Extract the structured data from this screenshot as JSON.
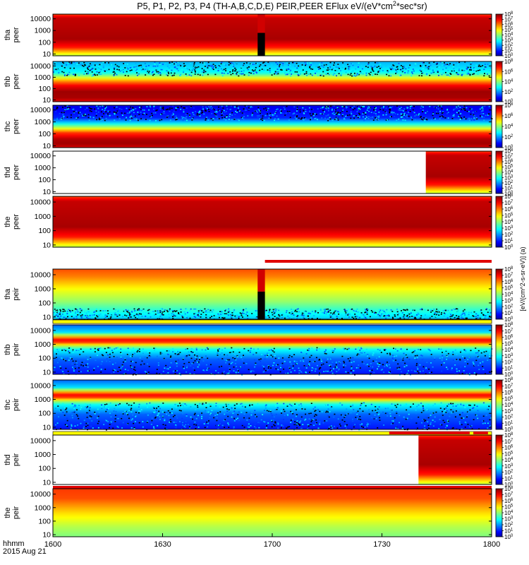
{
  "chart_data": {
    "type": "heatmap",
    "title": "P5, P1, P2, P3, P4 (TH-A,B,C,D,E) PEIR,PEER EFlux eV/(eV*cm^2*sec*sr)",
    "title_parts": {
      "main": "P5, P1, P2, P3, P4 (TH-A,B,C,D,E) PEIR,PEER EFlux eV/(eV*cm",
      "sup": "2",
      "tail": "*sec*sr)"
    },
    "x_axis": {
      "label_line1": "hhmm",
      "label_line2": "2015 Aug 21",
      "ticks": [
        "1600",
        "1630",
        "1700",
        "1730",
        "1800"
      ],
      "range_minutes": [
        0,
        120
      ],
      "tick_minutes": [
        0,
        30,
        60,
        90,
        120
      ]
    },
    "y_axis": {
      "scale": "log",
      "ticks": [
        "10",
        "100",
        "1000",
        "10000"
      ],
      "units": "eV"
    },
    "colorbar_label": "[eV/(cm^2-s-sr-eV)] (a)",
    "panels": [
      {
        "probe": "tha",
        "species": "peer",
        "label_top": "tha",
        "label_bottom": "peer",
        "cbar_max_exp": 8,
        "cbar_min_exp": 0,
        "cbar_ticks": [
          8,
          7,
          6,
          5,
          4,
          3,
          2,
          1,
          0
        ],
        "gap_minutes": [
          56,
          58
        ],
        "data_start_minutes": 0,
        "pattern": "hot_wide",
        "status_bar": "none"
      },
      {
        "probe": "thb",
        "species": "peer",
        "label_top": "thb",
        "label_bottom": "peer",
        "cbar_max_exp": 8,
        "cbar_min_exp": 0,
        "cbar_ticks": [
          8,
          6,
          4,
          2,
          0
        ],
        "gap_minutes": null,
        "data_start_minutes": 0,
        "pattern": "band_low",
        "status_bar": "none"
      },
      {
        "probe": "thc",
        "species": "peer",
        "label_top": "thc",
        "label_bottom": "peer",
        "cbar_max_exp": 8,
        "cbar_min_exp": 0,
        "cbar_ticks": [
          8,
          6,
          4,
          2,
          0
        ],
        "gap_minutes": null,
        "data_start_minutes": 0,
        "pattern": "band_low_noisy",
        "status_bar": "none"
      },
      {
        "probe": "thd",
        "species": "peer",
        "label_top": "thd",
        "label_bottom": "peer",
        "cbar_max_exp": 8,
        "cbar_min_exp": 0,
        "cbar_ticks": [
          8,
          7,
          6,
          5,
          4,
          3,
          2,
          1,
          0
        ],
        "gap_minutes": null,
        "data_start_minutes": 102,
        "pattern": "hot_wide",
        "status_bar": "none"
      },
      {
        "probe": "the",
        "species": "peer",
        "label_top": "the",
        "label_bottom": "peer",
        "cbar_max_exp": 8,
        "cbar_min_exp": 0,
        "cbar_ticks": [
          8,
          7,
          6,
          5,
          4,
          3,
          2,
          1,
          0
        ],
        "gap_minutes": null,
        "data_start_minutes": 0,
        "pattern": "hot_wide",
        "status_bar": "red_right"
      },
      {
        "probe": "tha",
        "species": "peir",
        "label_top": "tha",
        "label_bottom": "peir",
        "cbar_max_exp": 8,
        "cbar_min_exp": 0,
        "cbar_ticks": [
          8,
          7,
          6,
          5,
          4,
          3,
          2,
          1,
          0
        ],
        "gap_minutes": [
          56,
          58
        ],
        "data_start_minutes": 0,
        "pattern": "ion_mid",
        "status_bar": "yellow"
      },
      {
        "probe": "thb",
        "species": "peir",
        "label_top": "thb",
        "label_bottom": "peir",
        "cbar_max_exp": 8,
        "cbar_min_exp": 0,
        "cbar_ticks": [
          8,
          7,
          6,
          5,
          4,
          3,
          2,
          1,
          0
        ],
        "gap_minutes": null,
        "data_start_minutes": 0,
        "pattern": "ion_band",
        "status_bar": "yellow"
      },
      {
        "probe": "thc",
        "species": "peir",
        "label_top": "thc",
        "label_bottom": "peir",
        "cbar_max_exp": 8,
        "cbar_min_exp": 0,
        "cbar_ticks": [
          8,
          7,
          6,
          5,
          4,
          3,
          2,
          1,
          0
        ],
        "gap_minutes": null,
        "data_start_minutes": 0,
        "pattern": "ion_band",
        "status_bar": "yellow_red"
      },
      {
        "probe": "thd",
        "species": "peir",
        "label_top": "thd",
        "label_bottom": "peir",
        "cbar_max_exp": 8,
        "cbar_min_exp": 0,
        "cbar_ticks": [
          8,
          7,
          6,
          5,
          4,
          3,
          2,
          1,
          0
        ],
        "gap_minutes": null,
        "data_start_minutes": 100,
        "pattern": "hot_wide",
        "status_bar": "red"
      },
      {
        "probe": "the",
        "species": "peir",
        "label_top": "the",
        "label_bottom": "peir",
        "cbar_max_exp": 8,
        "cbar_min_exp": 0,
        "cbar_ticks": [
          8,
          7,
          6,
          5,
          4,
          3,
          2,
          1,
          0
        ],
        "gap_minutes": null,
        "data_start_minutes": 0,
        "pattern": "ion_wide",
        "status_bar": "none"
      }
    ]
  }
}
